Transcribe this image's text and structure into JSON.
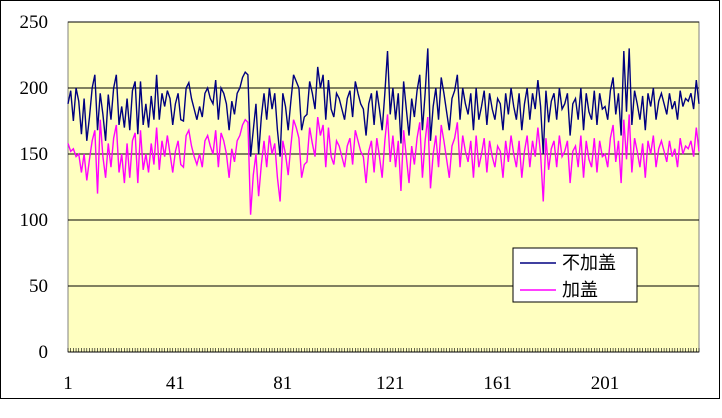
{
  "chart_data": {
    "type": "line",
    "title": "",
    "xlabel": "",
    "ylabel": "",
    "ylim": [
      0,
      250
    ],
    "y_ticks": [
      0,
      50,
      100,
      150,
      200,
      250
    ],
    "y_tick_labels": [
      "0",
      "50",
      "100",
      "150",
      "200",
      "250"
    ],
    "x_range": [
      1,
      236
    ],
    "x_ticks": [
      1,
      41,
      81,
      121,
      161,
      201
    ],
    "x_tick_labels": [
      "1",
      "41",
      "81",
      "121",
      "161",
      "201"
    ],
    "grid": "horizontal",
    "plot_background": "#FFFFC0",
    "legend_position": "lower-right",
    "series": [
      {
        "name": "不加盖",
        "color": "#000080",
        "values": [
          188,
          198,
          175,
          200,
          190,
          165,
          192,
          160,
          178,
          200,
          210,
          168,
          196,
          180,
          160,
          195,
          176,
          200,
          210,
          172,
          186,
          170,
          192,
          168,
          198,
          205,
          165,
          205,
          172,
          188,
          170,
          194,
          176,
          210,
          176,
          196,
          186,
          198,
          192,
          172,
          188,
          196,
          176,
          175,
          200,
          204,
          192,
          184,
          176,
          186,
          178,
          196,
          200,
          192,
          188,
          206,
          176,
          200,
          196,
          188,
          168,
          190,
          180,
          196,
          200,
          208,
          212,
          210,
          148,
          168,
          188,
          150,
          178,
          196,
          176,
          200,
          184,
          196,
          168,
          148,
          196,
          186,
          168,
          190,
          210,
          205,
          200,
          168,
          178,
          180,
          205,
          196,
          184,
          216,
          200,
          210,
          176,
          206,
          184,
          178,
          196,
          192,
          184,
          176,
          192,
          198,
          178,
          205,
          196,
          188,
          184,
          164,
          188,
          196,
          172,
          198,
          184,
          168,
          196,
          228,
          180,
          200,
          176,
          196,
          158,
          205,
          184,
          164,
          192,
          178,
          198,
          210,
          168,
          196,
          230,
          160,
          186,
          200,
          176,
          208,
          196,
          182,
          168,
          192,
          198,
          210,
          176,
          200,
          188,
          180,
          196,
          168,
          200,
          176,
          186,
          198,
          172,
          196,
          184,
          176,
          192,
          188,
          168,
          196,
          180,
          200,
          186,
          176,
          196,
          168,
          188,
          200,
          176,
          196,
          184,
          206,
          186,
          150,
          198,
          174,
          190,
          196,
          176,
          200,
          184,
          188,
          196,
          164,
          188,
          192,
          176,
          200,
          168,
          196,
          182,
          176,
          198,
          172,
          196,
          184,
          186,
          176,
          198,
          208,
          180,
          196,
          164,
          228,
          182,
          230,
          172,
          198,
          188,
          176,
          194,
          168,
          196,
          186,
          200,
          176,
          190,
          196,
          188,
          180,
          196,
          184,
          190,
          176,
          198,
          186,
          192,
          190,
          196,
          184,
          206,
          188
        ]
      },
      {
        "name": "加盖",
        "color": "#FF00FF",
        "values": [
          158,
          152,
          154,
          148,
          150,
          136,
          150,
          130,
          146,
          160,
          168,
          120,
          176,
          148,
          132,
          158,
          140,
          162,
          172,
          136,
          150,
          128,
          158,
          132,
          160,
          166,
          128,
          168,
          138,
          150,
          136,
          158,
          142,
          170,
          138,
          160,
          148,
          164,
          150,
          136,
          152,
          160,
          142,
          140,
          164,
          168,
          156,
          148,
          142,
          150,
          140,
          160,
          164,
          156,
          150,
          168,
          140,
          166,
          160,
          150,
          132,
          154,
          144,
          160,
          164,
          172,
          176,
          174,
          104,
          134,
          150,
          118,
          142,
          160,
          140,
          164,
          150,
          158,
          132,
          114,
          160,
          150,
          134,
          156,
          176,
          170,
          162,
          132,
          142,
          144,
          170,
          158,
          148,
          178,
          164,
          172,
          140,
          170,
          148,
          142,
          160,
          156,
          148,
          140,
          156,
          162,
          142,
          168,
          160,
          152,
          148,
          128,
          152,
          160,
          136,
          162,
          148,
          132,
          160,
          180,
          144,
          164,
          140,
          160,
          122,
          168,
          148,
          128,
          156,
          142,
          162,
          174,
          132,
          160,
          178,
          124,
          150,
          164,
          140,
          172,
          160,
          146,
          132,
          156,
          162,
          174,
          140,
          164,
          152,
          144,
          160,
          132,
          164,
          140,
          150,
          162,
          136,
          160,
          148,
          140,
          156,
          152,
          132,
          160,
          144,
          164,
          150,
          140,
          160,
          132,
          152,
          164,
          140,
          160,
          148,
          170,
          150,
          114,
          162,
          138,
          154,
          160,
          140,
          164,
          148,
          152,
          160,
          128,
          152,
          156,
          140,
          164,
          132,
          160,
          146,
          140,
          162,
          136,
          160,
          148,
          150,
          140,
          162,
          172,
          144,
          160,
          128,
          176,
          146,
          180,
          136,
          162,
          152,
          140,
          158,
          132,
          160,
          150,
          164,
          140,
          154,
          160,
          152,
          144,
          160,
          148,
          154,
          140,
          162,
          150,
          156,
          154,
          160,
          148,
          170,
          152
        ]
      }
    ]
  }
}
